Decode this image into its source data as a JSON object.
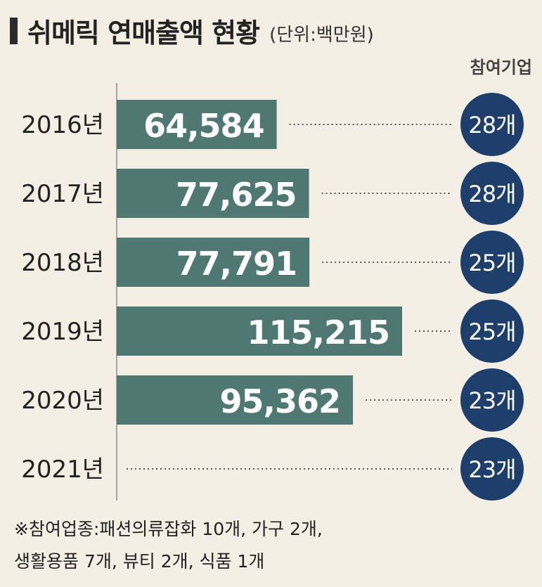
{
  "title": "쉬메릭 연매출액 현황",
  "unit": "(단위:백만원)",
  "column_header": "참여기업",
  "footnote": [
    "※참여업종:패션의류잡화 10개, 가구 2개,",
    "생활용품 7개, 뷰티 2개, 식품 1개"
  ],
  "colors": {
    "bar": "#4f7873",
    "badge": "#1e3e6c",
    "background": "#f3efe4"
  },
  "chart_data": {
    "type": "bar",
    "orientation": "horizontal",
    "categories": [
      "2016년",
      "2017년",
      "2018년",
      "2019년",
      "2020년",
      "2021년"
    ],
    "values": [
      64584,
      77625,
      77791,
      115215,
      95362,
      null
    ],
    "value_labels": [
      "64,584",
      "77,625",
      "77,791",
      "115,215",
      "95,362",
      ""
    ],
    "companies": [
      "28개",
      "28개",
      "25개",
      "25개",
      "23개",
      "23개"
    ],
    "unit": "백만원"
  }
}
